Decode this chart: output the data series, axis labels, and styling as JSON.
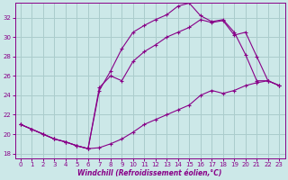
{
  "xlabel": "Windchill (Refroidissement éolien,°C)",
  "ylabel": "",
  "background_color": "#cce8e8",
  "grid_color": "#aacccc",
  "line_color": "#880088",
  "xlim": [
    -0.5,
    23.5
  ],
  "ylim": [
    17.5,
    33.5
  ],
  "xticks": [
    0,
    1,
    2,
    3,
    4,
    5,
    6,
    7,
    8,
    9,
    10,
    11,
    12,
    13,
    14,
    15,
    16,
    17,
    18,
    19,
    20,
    21,
    22,
    23
  ],
  "yticks": [
    18,
    20,
    22,
    24,
    26,
    28,
    30,
    32
  ],
  "line1_x": [
    0,
    1,
    2,
    3,
    4,
    5,
    6,
    7,
    8,
    9,
    10,
    11,
    12,
    13,
    14,
    15,
    16,
    17,
    18,
    19,
    20,
    21,
    22,
    23
  ],
  "line1_y": [
    21.0,
    20.5,
    20.0,
    19.5,
    19.2,
    18.8,
    18.5,
    18.6,
    19.0,
    19.5,
    20.2,
    21.0,
    21.5,
    22.0,
    22.5,
    23.0,
    24.0,
    24.5,
    24.2,
    24.5,
    25.0,
    25.3,
    25.5,
    25.0
  ],
  "line2_x": [
    0,
    1,
    2,
    3,
    4,
    5,
    6,
    7,
    8,
    9,
    10,
    11,
    12,
    13,
    14,
    15,
    16,
    17,
    18,
    19,
    20,
    21,
    22,
    23
  ],
  "line2_y": [
    21.0,
    20.5,
    20.0,
    19.5,
    19.2,
    18.8,
    18.5,
    24.5,
    26.5,
    28.8,
    30.5,
    31.2,
    31.8,
    32.3,
    33.2,
    33.5,
    32.2,
    31.6,
    31.8,
    30.5,
    28.2,
    25.5,
    25.5,
    25.0
  ],
  "line3_x": [
    0,
    2,
    3,
    4,
    5,
    6,
    7,
    8,
    9,
    10,
    11,
    12,
    13,
    14,
    15,
    16,
    17,
    18,
    19,
    20,
    21,
    22,
    23
  ],
  "line3_y": [
    21.0,
    20.0,
    19.5,
    19.2,
    18.8,
    18.5,
    24.8,
    26.0,
    25.5,
    27.5,
    28.5,
    29.2,
    30.0,
    30.5,
    31.0,
    31.8,
    31.5,
    31.7,
    30.2,
    30.5,
    28.0,
    25.5,
    25.0
  ]
}
